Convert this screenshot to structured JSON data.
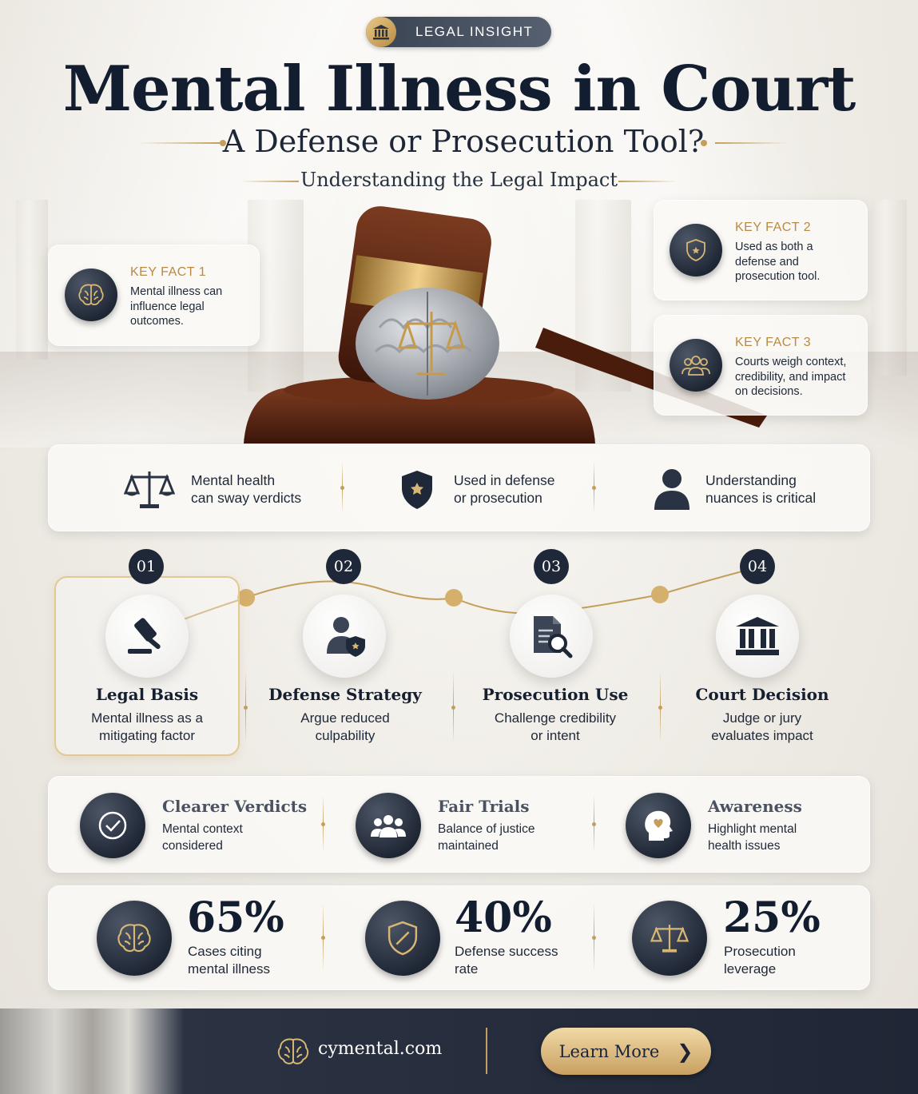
{
  "badge": {
    "label": "LEGAL INSIGHT",
    "icon": "courthouse-icon"
  },
  "title": "Mental Illness in Court",
  "subtitle": "A Defense or Prosecution Tool?",
  "tagline": "Understanding the Legal Impact",
  "key_facts": [
    {
      "label": "KEY FACT 1",
      "text": "Mental illness can influence legal outcomes.",
      "icon": "brain-icon"
    },
    {
      "label": "KEY FACT 2",
      "text": "Used as both a defense and prosecution tool.",
      "icon": "shield-icon"
    },
    {
      "label": "KEY FACT 3",
      "text": "Courts weigh context, credibility, and impact on decisions.",
      "icon": "people-icon"
    }
  ],
  "highlights": [
    {
      "line1": "Mental health",
      "line2": "can sway verdicts",
      "icon": "scales-icon"
    },
    {
      "line1": "Used in defense",
      "line2": "or prosecution",
      "icon": "shield-icon"
    },
    {
      "line1": "Understanding",
      "line2": "nuances is critical",
      "icon": "person-icon"
    }
  ],
  "steps": [
    {
      "num": "01",
      "title": "Legal Basis",
      "line1": "Mental illness as a",
      "line2": "mitigating factor",
      "icon": "gavel-icon"
    },
    {
      "num": "02",
      "title": "Defense Strategy",
      "line1": "Argue reduced",
      "line2": "culpability",
      "icon": "defender-icon"
    },
    {
      "num": "03",
      "title": "Prosecution Use",
      "line1": "Challenge credibility",
      "line2": "or intent",
      "icon": "document-search-icon"
    },
    {
      "num": "04",
      "title": "Court Decision",
      "line1": "Judge or jury",
      "line2": "evaluates impact",
      "icon": "courthouse-icon"
    }
  ],
  "benefits": [
    {
      "title": "Clearer Verdicts",
      "line1": "Mental context",
      "line2": "considered",
      "icon": "check-circle-icon"
    },
    {
      "title": "Fair Trials",
      "line1": "Balance of justice",
      "line2": "maintained",
      "icon": "group-icon"
    },
    {
      "title": "Awareness",
      "line1": "Highlight mental",
      "line2": "health issues",
      "icon": "head-heart-icon"
    }
  ],
  "stats": [
    {
      "value": "65%",
      "line1": "Cases citing",
      "line2": "mental illness",
      "icon": "brain-icon"
    },
    {
      "value": "40%",
      "line1": "Defense success",
      "line2": "rate",
      "icon": "shield-icon"
    },
    {
      "value": "25%",
      "line1": "Prosecution",
      "line2": "leverage",
      "icon": "scales-icon"
    }
  ],
  "footer": {
    "url": "cymental.com",
    "button": "Learn More",
    "button_icon": "chevron-right-icon"
  },
  "colors": {
    "navy": "#1f2838",
    "gold": "#c49e5c",
    "background": "#efece6"
  }
}
